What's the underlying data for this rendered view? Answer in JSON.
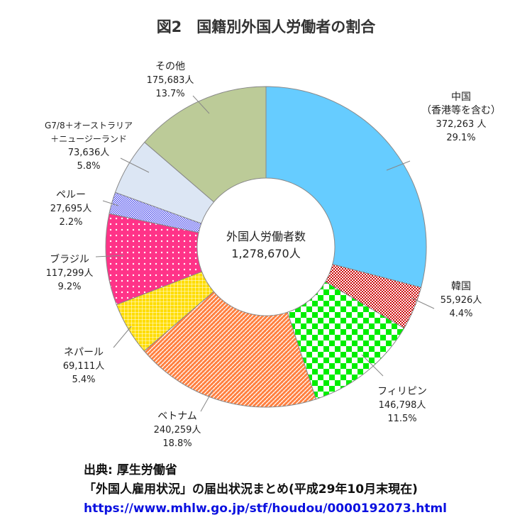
{
  "chart_data": {
    "type": "pie",
    "title": "図2　国籍別外国人労働者の割合",
    "center_label": {
      "title": "外国人労働者数",
      "total": "1,278,670人"
    },
    "slices": [
      {
        "name": "中国",
        "name2": "（香港等を含む）",
        "count": "372,263 人",
        "value": 29.1,
        "pct": "29.1%",
        "color": "#66CCFF",
        "pattern": "solid"
      },
      {
        "name": "韓国",
        "count": "55,926人",
        "value": 4.4,
        "pct": "4.4%",
        "color": "#CC0000",
        "pattern": "check-small"
      },
      {
        "name": "フィリピン",
        "count": "146,798人",
        "value": 11.5,
        "pct": "11.5%",
        "color": "#00EE00",
        "pattern": "check-large"
      },
      {
        "name": "ベトナム",
        "count": "240,259人",
        "value": 18.8,
        "pct": "18.8%",
        "color": "#FF8040",
        "pattern": "zigzag"
      },
      {
        "name": "ネパール",
        "count": "69,111人",
        "value": 5.4,
        "pct": "5.4%",
        "color": "#FFDD00",
        "pattern": "grid"
      },
      {
        "name": "ブラジル",
        "count": "117,299人",
        "value": 9.2,
        "pct": "9.2%",
        "color": "#FF3388",
        "pattern": "dots"
      },
      {
        "name": "ペルー",
        "count": "27,695人",
        "value": 2.2,
        "pct": "2.2%",
        "color": "#5555EE",
        "pattern": "dots-small"
      },
      {
        "name": "G7/8＋オーストラリア",
        "name2": "＋ニュージーランド",
        "count": "73,636人",
        "value": 5.8,
        "pct": "5.8%",
        "color": "#DCE6F4",
        "pattern": "solid"
      },
      {
        "name": "その他",
        "count": "175,683人",
        "value": 13.7,
        "pct": "13.7%",
        "color": "#BCCB98",
        "pattern": "solid"
      }
    ]
  },
  "source": {
    "line1": "出典: 厚生労働省",
    "line2": "「外国人雇用状況」の届出状況まとめ(平成29年10月末現在)",
    "url": "https://www.mhlw.go.jp/stf/houdou/0000192073.html"
  }
}
